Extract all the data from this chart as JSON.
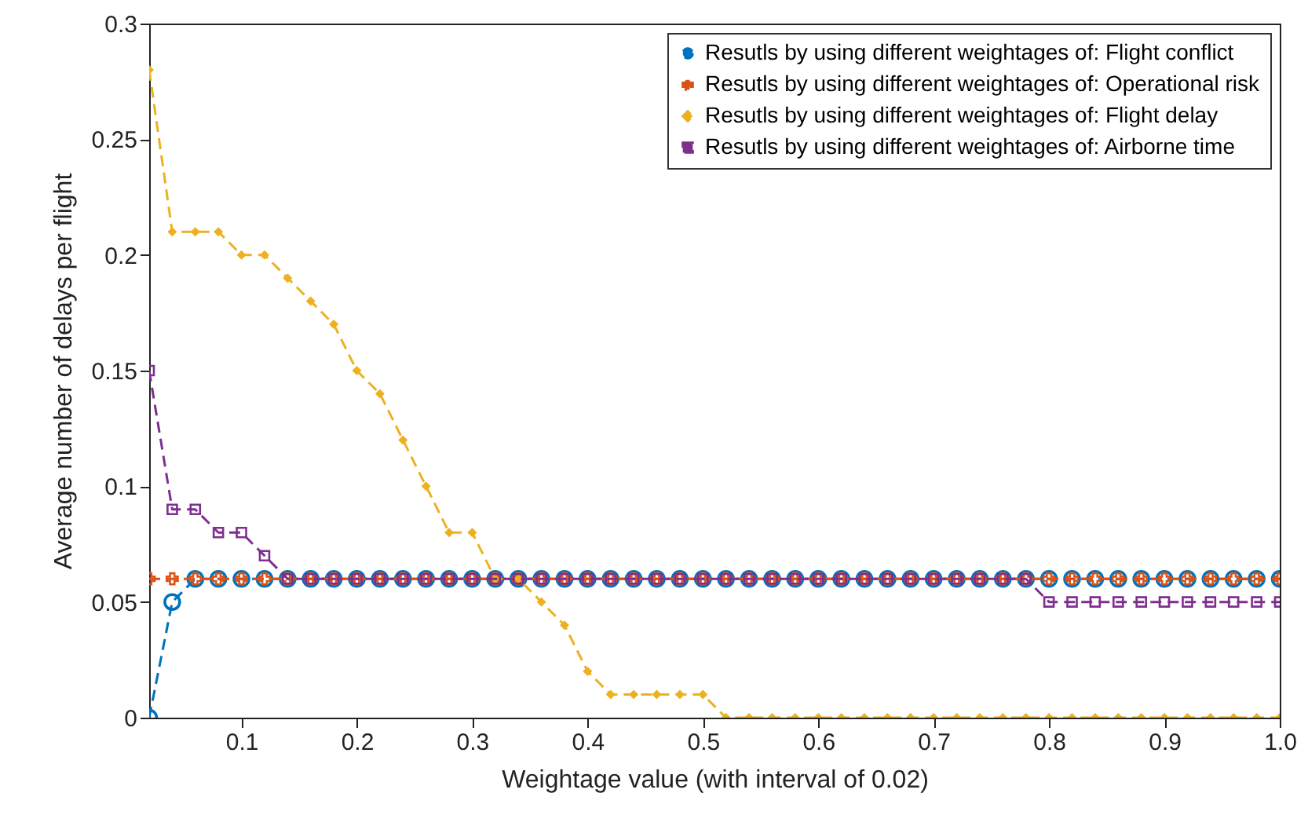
{
  "chart_data": {
    "type": "line",
    "xlabel": "Weightage value (with interval of 0.02)",
    "ylabel": "Average number of delays per flight",
    "x": [
      0.02,
      0.04,
      0.06,
      0.08,
      0.1,
      0.12,
      0.14,
      0.16,
      0.18,
      0.2,
      0.22,
      0.24,
      0.26,
      0.28,
      0.3,
      0.32,
      0.34,
      0.36,
      0.38,
      0.4,
      0.42,
      0.44,
      0.46,
      0.48,
      0.5,
      0.52,
      0.54,
      0.56,
      0.58,
      0.6,
      0.62,
      0.64,
      0.66,
      0.68,
      0.7,
      0.72,
      0.74,
      0.76,
      0.78,
      0.8,
      0.82,
      0.84,
      0.86,
      0.88,
      0.9,
      0.92,
      0.94,
      0.96,
      0.98,
      1.0
    ],
    "series": [
      {
        "name": "Resutls by using different weightages of: Flight conflict",
        "color": "#0072bd",
        "marker": "circle",
        "values": [
          0,
          0.05,
          0.06,
          0.06,
          0.06,
          0.06,
          0.06,
          0.06,
          0.06,
          0.06,
          0.06,
          0.06,
          0.06,
          0.06,
          0.06,
          0.06,
          0.06,
          0.06,
          0.06,
          0.06,
          0.06,
          0.06,
          0.06,
          0.06,
          0.06,
          0.06,
          0.06,
          0.06,
          0.06,
          0.06,
          0.06,
          0.06,
          0.06,
          0.06,
          0.06,
          0.06,
          0.06,
          0.06,
          0.06,
          0.06,
          0.06,
          0.06,
          0.06,
          0.06,
          0.06,
          0.06,
          0.06,
          0.06,
          0.06,
          0.06
        ]
      },
      {
        "name": "Resutls by using different weightages of: Operational risk",
        "color": "#d95319",
        "marker": "cross",
        "values": [
          0.06,
          0.06,
          0.06,
          0.06,
          0.06,
          0.06,
          0.06,
          0.06,
          0.06,
          0.06,
          0.06,
          0.06,
          0.06,
          0.06,
          0.06,
          0.06,
          0.06,
          0.06,
          0.06,
          0.06,
          0.06,
          0.06,
          0.06,
          0.06,
          0.06,
          0.06,
          0.06,
          0.06,
          0.06,
          0.06,
          0.06,
          0.06,
          0.06,
          0.06,
          0.06,
          0.06,
          0.06,
          0.06,
          0.06,
          0.06,
          0.06,
          0.06,
          0.06,
          0.06,
          0.06,
          0.06,
          0.06,
          0.06,
          0.06,
          0.06
        ]
      },
      {
        "name": "Resutls by using different weightages of: Flight delay",
        "color": "#edb120",
        "marker": "diamond",
        "values": [
          0.28,
          0.21,
          0.21,
          0.21,
          0.2,
          0.2,
          0.19,
          0.18,
          0.17,
          0.15,
          0.14,
          0.12,
          0.1,
          0.08,
          0.08,
          0.06,
          0.06,
          0.05,
          0.04,
          0.02,
          0.01,
          0.01,
          0.01,
          0.01,
          0.01,
          0,
          0,
          0,
          0,
          0,
          0,
          0,
          0,
          0,
          0,
          0,
          0,
          0,
          0,
          0,
          0,
          0,
          0,
          0,
          0,
          0,
          0,
          0,
          0,
          0
        ]
      },
      {
        "name": "Resutls by using different weightages of: Airborne time",
        "color": "#7e2f8e",
        "marker": "square",
        "values": [
          0.15,
          0.09,
          0.09,
          0.08,
          0.08,
          0.07,
          0.06,
          0.06,
          0.06,
          0.06,
          0.06,
          0.06,
          0.06,
          0.06,
          0.06,
          0.06,
          0.06,
          0.06,
          0.06,
          0.06,
          0.06,
          0.06,
          0.06,
          0.06,
          0.06,
          0.06,
          0.06,
          0.06,
          0.06,
          0.06,
          0.06,
          0.06,
          0.06,
          0.06,
          0.06,
          0.06,
          0.06,
          0.06,
          0.06,
          0.05,
          0.05,
          0.05,
          0.05,
          0.05,
          0.05,
          0.05,
          0.05,
          0.05,
          0.05,
          0.05
        ]
      }
    ],
    "xlim": [
      0.02,
      1.0
    ],
    "xticks": [
      0.1,
      0.2,
      0.3,
      0.4,
      0.5,
      0.6,
      0.7,
      0.8,
      0.9,
      {
        "value": 1.0,
        "label": "1.0"
      }
    ],
    "ylim": [
      0,
      0.3
    ],
    "yticks": [
      0,
      0.05,
      0.1,
      0.15,
      0.2,
      0.25,
      0.3
    ],
    "grid": false,
    "legend": "top right",
    "line_style": "dashed"
  }
}
